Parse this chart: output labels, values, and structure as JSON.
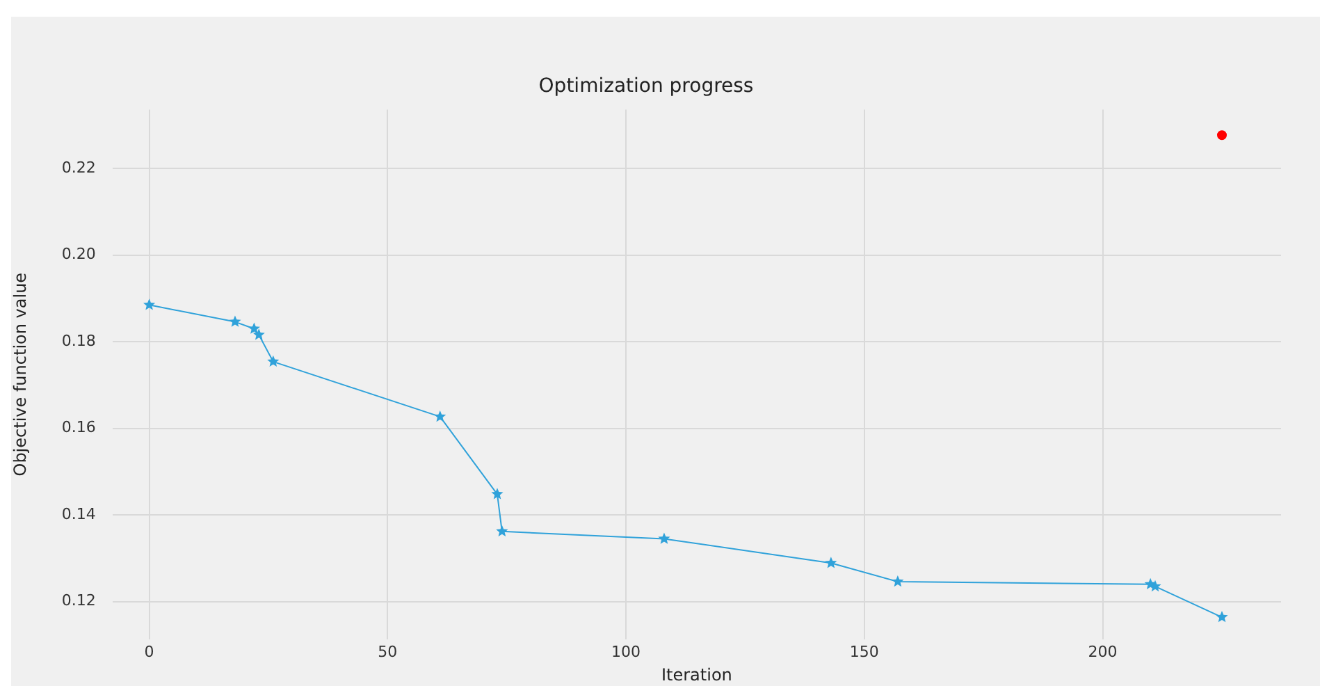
{
  "chart_data": {
    "type": "line",
    "title": "Optimization progress",
    "xlabel": "Iteration",
    "ylabel": "Objective function value",
    "xlim": [
      -7.7,
      237.4
    ],
    "xticks": [
      0,
      50,
      100,
      150,
      200
    ],
    "ylim": [
      0.1113,
      0.2336
    ],
    "yticks": [
      0.12,
      0.14,
      0.16,
      0.18,
      {
        "value": 0.2,
        "label": "0.20"
      },
      0.22
    ],
    "grid": true,
    "legend": false,
    "series": [
      {
        "color": "#30a2da",
        "marker": "star",
        "x": [
          0,
          18,
          22,
          23,
          26,
          61,
          73,
          74,
          108,
          143,
          157,
          210,
          211,
          225
        ],
        "values": [
          0.1885,
          0.1846,
          0.183,
          0.1816,
          0.1754,
          0.1627,
          0.1448,
          0.1362,
          0.1345,
          0.1289,
          0.1246,
          0.124,
          0.1235,
          0.1164
        ]
      },
      {
        "type": "scatter",
        "color": "#ff0000",
        "marker": "circle",
        "x": [
          225
        ],
        "values": [
          0.2277
        ]
      }
    ]
  }
}
